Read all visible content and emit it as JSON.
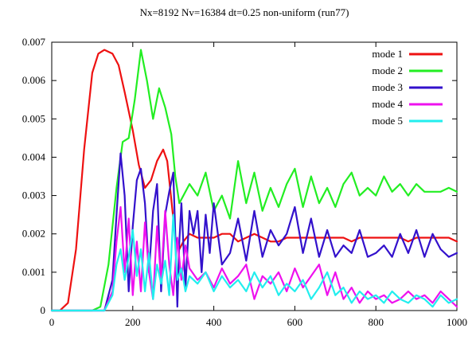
{
  "chart_data": {
    "type": "line",
    "title": "Nx=8192 Nv=16384 dt=0.25 non-uniform (run77)",
    "xlabel": "",
    "ylabel": "",
    "xlim": [
      0,
      1000
    ],
    "ylim": [
      0,
      0.007
    ],
    "xticks": [
      "0",
      "200",
      "400",
      "600",
      "800",
      "1000"
    ],
    "yticks": [
      "0",
      "0.001",
      "0.002",
      "0.003",
      "0.004",
      "0.005",
      "0.006",
      "0.007"
    ],
    "grid": false,
    "legend_position": "top-right",
    "series": [
      {
        "name": "mode 1",
        "color": "#ee1111",
        "x": [
          0,
          20,
          40,
          60,
          80,
          100,
          115,
          130,
          150,
          165,
          180,
          200,
          215,
          230,
          245,
          260,
          275,
          285,
          295,
          305,
          315,
          325,
          340,
          360,
          380,
          400,
          420,
          440,
          460,
          480,
          500,
          520,
          540,
          560,
          580,
          600,
          620,
          640,
          660,
          680,
          700,
          720,
          740,
          760,
          780,
          800,
          820,
          840,
          860,
          880,
          900,
          920,
          940,
          960,
          980,
          1000
        ],
        "y": [
          0,
          0,
          0.0002,
          0.0016,
          0.0042,
          0.0062,
          0.0067,
          0.0068,
          0.0067,
          0.0064,
          0.0057,
          0.0047,
          0.0038,
          0.0032,
          0.0034,
          0.0039,
          0.0042,
          0.0039,
          0.0029,
          0.0019,
          0.0016,
          0.0018,
          0.002,
          0.0019,
          0.0019,
          0.0019,
          0.002,
          0.002,
          0.0018,
          0.0019,
          0.002,
          0.0019,
          0.0018,
          0.0018,
          0.0019,
          0.0019,
          0.0019,
          0.0019,
          0.0019,
          0.0019,
          0.0019,
          0.0019,
          0.0018,
          0.0019,
          0.0019,
          0.0019,
          0.0019,
          0.0019,
          0.0019,
          0.0018,
          0.0019,
          0.0019,
          0.0019,
          0.0019,
          0.0019,
          0.0018
        ]
      },
      {
        "name": "mode 2",
        "color": "#22ee22",
        "x": [
          0,
          100,
          120,
          140,
          160,
          175,
          190,
          205,
          220,
          235,
          250,
          265,
          280,
          295,
          305,
          315,
          325,
          340,
          360,
          380,
          400,
          420,
          440,
          460,
          480,
          500,
          520,
          540,
          560,
          580,
          600,
          620,
          640,
          660,
          680,
          700,
          720,
          740,
          760,
          780,
          800,
          820,
          840,
          860,
          880,
          900,
          920,
          940,
          960,
          980,
          1000
        ],
        "y": [
          0,
          0,
          0.0001,
          0.0012,
          0.0032,
          0.0044,
          0.0045,
          0.0055,
          0.0068,
          0.006,
          0.005,
          0.0058,
          0.0053,
          0.0046,
          0.0035,
          0.0028,
          0.003,
          0.0033,
          0.003,
          0.0036,
          0.0026,
          0.003,
          0.0024,
          0.0039,
          0.0028,
          0.0036,
          0.0026,
          0.0032,
          0.0027,
          0.0033,
          0.0037,
          0.0027,
          0.0035,
          0.0028,
          0.0032,
          0.0027,
          0.0033,
          0.0036,
          0.003,
          0.0032,
          0.003,
          0.0035,
          0.0031,
          0.0033,
          0.003,
          0.0033,
          0.0031,
          0.0031,
          0.0031,
          0.0032,
          0.0031
        ]
      },
      {
        "name": "mode 3",
        "color": "#3311cc",
        "x": [
          0,
          130,
          150,
          160,
          170,
          180,
          190,
          200,
          210,
          220,
          230,
          240,
          250,
          260,
          270,
          280,
          290,
          300,
          305,
          310,
          315,
          320,
          330,
          340,
          350,
          360,
          370,
          380,
          390,
          400,
          420,
          440,
          460,
          480,
          500,
          520,
          540,
          560,
          580,
          600,
          620,
          640,
          660,
          680,
          700,
          720,
          740,
          760,
          780,
          800,
          820,
          840,
          860,
          880,
          900,
          920,
          940,
          960,
          980,
          1000
        ],
        "y": [
          0,
          0,
          0.0008,
          0.0025,
          0.0041,
          0.003,
          0.0005,
          0.0022,
          0.0034,
          0.0037,
          0.0028,
          0.001,
          0.0026,
          0.0033,
          0.0005,
          0.0025,
          0.0031,
          0.0036,
          0.002,
          0.0001,
          0.0018,
          0.0028,
          0.0006,
          0.0026,
          0.002,
          0.0026,
          0.001,
          0.0025,
          0.0015,
          0.0028,
          0.0012,
          0.0015,
          0.0024,
          0.0013,
          0.0026,
          0.0014,
          0.0021,
          0.0017,
          0.002,
          0.0027,
          0.0015,
          0.0024,
          0.0014,
          0.0021,
          0.0014,
          0.0017,
          0.0015,
          0.0021,
          0.0014,
          0.0015,
          0.0017,
          0.0014,
          0.002,
          0.0015,
          0.0021,
          0.0014,
          0.002,
          0.0016,
          0.0014,
          0.0015
        ]
      },
      {
        "name": "mode 4",
        "color": "#ee11ee",
        "x": [
          0,
          130,
          150,
          160,
          170,
          180,
          190,
          200,
          210,
          220,
          230,
          240,
          250,
          260,
          270,
          280,
          290,
          300,
          310,
          320,
          330,
          340,
          360,
          380,
          400,
          420,
          440,
          460,
          480,
          500,
          520,
          540,
          560,
          580,
          600,
          620,
          640,
          660,
          680,
          700,
          720,
          740,
          760,
          780,
          800,
          820,
          840,
          860,
          880,
          900,
          920,
          940,
          960,
          980,
          1000
        ],
        "y": [
          0,
          0,
          0.0005,
          0.0018,
          0.0027,
          0.001,
          0.0024,
          0.0004,
          0.0018,
          0.0005,
          0.0023,
          0.001,
          0.0003,
          0.0022,
          0.0008,
          0.0026,
          0.0012,
          0.0004,
          0.0019,
          0.0008,
          0.0017,
          0.0011,
          0.0008,
          0.001,
          0.0006,
          0.0011,
          0.0007,
          0.0009,
          0.0012,
          0.0003,
          0.0009,
          0.0007,
          0.001,
          0.0005,
          0.0011,
          0.0006,
          0.0009,
          0.0012,
          0.0004,
          0.001,
          0.0003,
          0.0006,
          0.0002,
          0.0005,
          0.0003,
          0.0004,
          0.0002,
          0.0003,
          0.0005,
          0.0003,
          0.0004,
          0.0002,
          0.0005,
          0.0003,
          0.0001
        ]
      },
      {
        "name": "mode 5",
        "color": "#22eeee",
        "x": [
          0,
          130,
          150,
          160,
          170,
          180,
          190,
          200,
          210,
          220,
          230,
          240,
          250,
          260,
          270,
          280,
          290,
          300,
          310,
          320,
          330,
          340,
          360,
          380,
          400,
          420,
          440,
          460,
          480,
          500,
          520,
          540,
          560,
          580,
          600,
          620,
          640,
          660,
          680,
          700,
          720,
          740,
          760,
          780,
          800,
          820,
          840,
          860,
          880,
          900,
          920,
          940,
          960,
          980,
          1000
        ],
        "y": [
          0,
          0,
          0.0004,
          0.0012,
          0.0016,
          0.0008,
          0.0014,
          0.0021,
          0.0009,
          0.0016,
          0.0005,
          0.0015,
          0.0003,
          0.0012,
          0.0007,
          0.0013,
          0.0004,
          0.0025,
          0.0008,
          0.0011,
          0.0005,
          0.0009,
          0.0007,
          0.001,
          0.0005,
          0.0009,
          0.0006,
          0.0008,
          0.0005,
          0.001,
          0.0006,
          0.0009,
          0.0004,
          0.0007,
          0.0005,
          0.0008,
          0.0003,
          0.0006,
          0.001,
          0.0004,
          0.0006,
          0.0002,
          0.0005,
          0.0003,
          0.0004,
          0.0002,
          0.0005,
          0.0003,
          0.0002,
          0.0004,
          0.0003,
          0.0001,
          0.0004,
          0.0002,
          0.0003
        ]
      }
    ]
  }
}
